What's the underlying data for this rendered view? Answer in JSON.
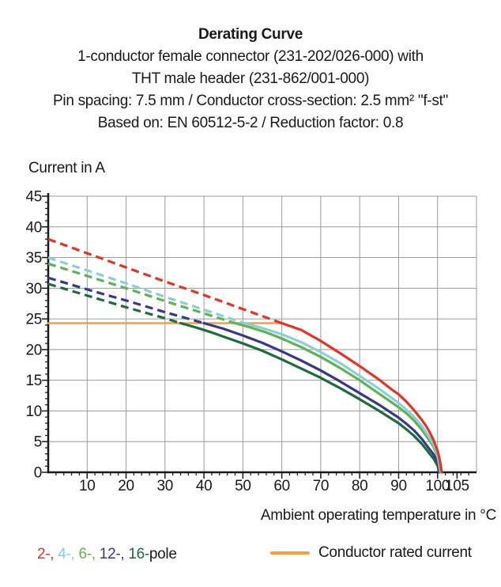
{
  "header": {
    "title": "Derating Curve",
    "subtitle_lines": [
      "1-conductor female connector (231-202/026-000) with",
      "THT male header (231-862/001-000)",
      "Pin spacing: 7.5 mm / Conductor cross-section: 2.5 mm² \"f-st\"",
      "Based on: EN 60512-5-2 / Reduction factor: 0.8"
    ]
  },
  "legend": {
    "pole_tokens": [
      {
        "text": "2-, ",
        "color": "#e63323"
      },
      {
        "text": "4-, ",
        "color": "#8ad0d8"
      },
      {
        "text": "6-, ",
        "color": "#5eb352"
      },
      {
        "text": "12-, ",
        "color": "#38388e"
      },
      {
        "text": "16-",
        "color": "#1a6e3c"
      },
      {
        "text": "pole",
        "color": "#1a1a1a"
      }
    ],
    "rated_label": "Conductor rated current",
    "rated_color": "#f5a13d"
  },
  "chart_data": {
    "type": "line",
    "title": "Derating Curve",
    "x_axis": {
      "label": "Ambient operating temperature in °C",
      "min": 0,
      "max": 110,
      "grid_step": 10,
      "minor_tick_step": 2,
      "major_tick_step": 10,
      "ticks": [
        10,
        20,
        30,
        40,
        50,
        60,
        70,
        80,
        90,
        100,
        105
      ]
    },
    "y_axis": {
      "label": "Current in A",
      "min": 0,
      "max": 45,
      "grid_step": 5,
      "minor_tick_step": 1,
      "major_tick_step": 5,
      "ticks": [
        0,
        5,
        10,
        15,
        20,
        25,
        30,
        35,
        40,
        45
      ]
    },
    "grid_color": "#9b9b9b",
    "axis_color": "#1a1a1a",
    "dash_pattern": "10 6",
    "rated_current_A": 24.3,
    "series": [
      {
        "id": "conductor-rated-current",
        "name": "Conductor rated current",
        "color": "#f5a13d",
        "width": 2.5,
        "solid_points": [
          [
            0,
            24.3
          ],
          [
            60,
            24.3
          ]
        ]
      },
      {
        "id": "16-pole",
        "name": "16-pole",
        "color": "#1a6e3c",
        "width": 3.2,
        "dashed_points": [
          [
            0,
            30.7
          ],
          [
            10,
            28.8
          ],
          [
            20,
            26.9
          ],
          [
            30,
            25.1
          ],
          [
            34,
            24.3
          ]
        ],
        "solid_points": [
          [
            34,
            24.3
          ],
          [
            38,
            23.6
          ],
          [
            42,
            22.8
          ],
          [
            46,
            21.9
          ],
          [
            50,
            21.0
          ],
          [
            55,
            19.8
          ],
          [
            60,
            18.4
          ],
          [
            65,
            16.9
          ],
          [
            70,
            15.4
          ],
          [
            75,
            13.7
          ],
          [
            80,
            11.9
          ],
          [
            85,
            10.0
          ],
          [
            90,
            8.0
          ],
          [
            92,
            7.0
          ],
          [
            94,
            5.9
          ],
          [
            96,
            4.6
          ],
          [
            98,
            3.0
          ],
          [
            99,
            2.2
          ],
          [
            100,
            1.1
          ],
          [
            100.55,
            0
          ]
        ]
      },
      {
        "id": "12-pole",
        "name": "12-pole",
        "color": "#38388e",
        "width": 3.2,
        "dashed_points": [
          [
            0,
            31.7
          ],
          [
            10,
            29.8
          ],
          [
            20,
            28.0
          ],
          [
            30,
            26.1
          ],
          [
            40,
            24.3
          ]
        ],
        "solid_points": [
          [
            40,
            24.3
          ],
          [
            45,
            23.4
          ],
          [
            50,
            22.3
          ],
          [
            55,
            21.1
          ],
          [
            60,
            19.7
          ],
          [
            65,
            18.2
          ],
          [
            70,
            16.6
          ],
          [
            75,
            14.8
          ],
          [
            80,
            12.9
          ],
          [
            85,
            11.0
          ],
          [
            90,
            8.9
          ],
          [
            92,
            7.9
          ],
          [
            94,
            6.8
          ],
          [
            96,
            5.4
          ],
          [
            98,
            3.7
          ],
          [
            99,
            2.9
          ],
          [
            100,
            1.6
          ],
          [
            100.4,
            0
          ]
        ]
      },
      {
        "id": "6-pole",
        "name": "6-pole",
        "color": "#5eb352",
        "width": 3.2,
        "dashed_points": [
          [
            0,
            34.0
          ],
          [
            10,
            32.0
          ],
          [
            20,
            30.0
          ],
          [
            30,
            27.9
          ],
          [
            40,
            25.9
          ],
          [
            48,
            24.3
          ]
        ],
        "solid_points": [
          [
            48,
            24.3
          ],
          [
            52,
            23.6
          ],
          [
            56,
            22.8
          ],
          [
            60,
            21.8
          ],
          [
            65,
            20.4
          ],
          [
            70,
            18.8
          ],
          [
            75,
            17.0
          ],
          [
            80,
            15.0
          ],
          [
            85,
            12.8
          ],
          [
            90,
            10.6
          ],
          [
            92,
            9.6
          ],
          [
            94,
            8.4
          ],
          [
            96,
            6.9
          ],
          [
            98,
            5.1
          ],
          [
            99,
            4.1
          ],
          [
            100,
            2.6
          ],
          [
            100.7,
            0
          ]
        ]
      },
      {
        "id": "4-pole",
        "name": "4-pole",
        "color": "#8ad0d8",
        "width": 3.2,
        "dashed_points": [
          [
            0,
            35.0
          ],
          [
            10,
            32.9
          ],
          [
            20,
            30.8
          ],
          [
            30,
            28.6
          ],
          [
            40,
            26.5
          ],
          [
            50,
            24.4
          ]
        ],
        "solid_points": [
          [
            50,
            24.4
          ],
          [
            55,
            23.5
          ],
          [
            60,
            22.5
          ],
          [
            65,
            21.2
          ],
          [
            70,
            19.6
          ],
          [
            75,
            17.8
          ],
          [
            80,
            15.7
          ],
          [
            85,
            13.6
          ],
          [
            90,
            11.3
          ],
          [
            92,
            10.2
          ],
          [
            94,
            9.0
          ],
          [
            96,
            7.5
          ],
          [
            98,
            5.6
          ],
          [
            99,
            4.5
          ],
          [
            100,
            2.9
          ],
          [
            100.9,
            0
          ]
        ]
      },
      {
        "id": "2-pole",
        "name": "2-pole",
        "color": "#e63323",
        "width": 3.2,
        "dashed_points": [
          [
            0,
            38.0
          ],
          [
            10,
            35.7
          ],
          [
            20,
            33.4
          ],
          [
            30,
            31.1
          ],
          [
            40,
            28.9
          ],
          [
            50,
            26.6
          ],
          [
            60,
            24.3
          ]
        ],
        "solid_points": [
          [
            60,
            24.3
          ],
          [
            65,
            23.2
          ],
          [
            70,
            21.4
          ],
          [
            75,
            19.4
          ],
          [
            80,
            17.3
          ],
          [
            85,
            15.1
          ],
          [
            88,
            13.6
          ],
          [
            90,
            12.7
          ],
          [
            92,
            11.5
          ],
          [
            94,
            10.1
          ],
          [
            96,
            8.5
          ],
          [
            97,
            7.6
          ],
          [
            98,
            6.5
          ],
          [
            99,
            5.2
          ],
          [
            100,
            3.5
          ],
          [
            100.5,
            2.2
          ],
          [
            101.1,
            0
          ]
        ]
      }
    ]
  }
}
